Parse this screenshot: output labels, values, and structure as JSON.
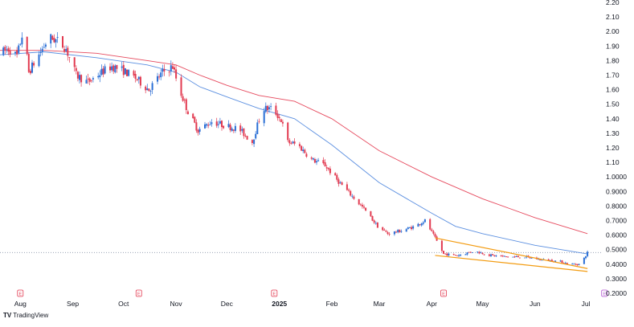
{
  "brand": {
    "logo_glyph": "TV",
    "name": "TradingView"
  },
  "colors": {
    "up": "#2a6fd6",
    "down": "#e23a50",
    "ma_fast": "#5b8fe0",
    "ma_slow": "#e64a5e",
    "channel": "#f39c12",
    "price_line": "#9aa3b5",
    "axis_text": "#131722",
    "event_red": "#e23a50",
    "event_purple": "#b04fd0"
  },
  "chart_data": {
    "type": "candlestick",
    "y_axis": {
      "position": "right",
      "ylim": [
        0.2,
        2.2
      ],
      "ticks": [
        "2.20",
        "2.10",
        "2.00",
        "1.90",
        "1.80",
        "1.70",
        "1.60",
        "1.50",
        "1.40",
        "1.30",
        "1.20",
        "1.10",
        "1.0000",
        "0.9000",
        "0.8000",
        "0.7000",
        "0.6000",
        "0.5000",
        "0.4000",
        "0.3000",
        "0.2000"
      ]
    },
    "x_axis": {
      "labels": [
        "Aug",
        "Sep",
        "Oct",
        "Nov",
        "Dec",
        "2025",
        "Feb",
        "Mar",
        "Apr",
        "May",
        "Jun",
        "Jul"
      ],
      "label_dates": [
        "2024-08-01",
        "2024-09-01",
        "2024-10-01",
        "2024-11-01",
        "2024-12-01",
        "2025-01-01",
        "2025-02-01",
        "2025-03-01",
        "2025-04-01",
        "2025-05-01",
        "2025-06-01",
        "2025-07-01"
      ],
      "range": [
        "2024-07-20",
        "2025-07-10"
      ]
    },
    "last_price": 0.48,
    "price_path": [
      [
        "2024-07-20",
        1.85
      ],
      [
        "2024-07-25",
        1.88
      ],
      [
        "2024-07-30",
        1.83
      ],
      [
        "2024-08-03",
        2.02
      ],
      [
        "2024-08-06",
        1.72
      ],
      [
        "2024-08-12",
        1.84
      ],
      [
        "2024-08-18",
        1.96
      ],
      [
        "2024-08-24",
        1.93
      ],
      [
        "2024-08-28",
        1.88
      ],
      [
        "2024-09-03",
        1.7
      ],
      [
        "2024-09-10",
        1.65
      ],
      [
        "2024-09-18",
        1.72
      ],
      [
        "2024-09-24",
        1.76
      ],
      [
        "2024-10-01",
        1.73
      ],
      [
        "2024-10-08",
        1.68
      ],
      [
        "2024-10-16",
        1.6
      ],
      [
        "2024-10-24",
        1.72
      ],
      [
        "2024-10-30",
        1.76
      ],
      [
        "2024-11-03",
        1.6
      ],
      [
        "2024-11-08",
        1.45
      ],
      [
        "2024-11-14",
        1.32
      ],
      [
        "2024-11-22",
        1.38
      ],
      [
        "2024-12-01",
        1.35
      ],
      [
        "2024-12-08",
        1.33
      ],
      [
        "2024-12-16",
        1.24
      ],
      [
        "2024-12-22",
        1.47
      ],
      [
        "2024-12-28",
        1.47
      ],
      [
        "2025-01-02",
        1.39
      ],
      [
        "2025-01-06",
        1.24
      ],
      [
        "2025-01-12",
        1.22
      ],
      [
        "2025-01-20",
        1.12
      ],
      [
        "2025-01-28",
        1.08
      ],
      [
        "2025-02-04",
        0.98
      ],
      [
        "2025-02-12",
        0.88
      ],
      [
        "2025-02-20",
        0.78
      ],
      [
        "2025-02-28",
        0.66
      ],
      [
        "2025-03-06",
        0.61
      ],
      [
        "2025-03-14",
        0.63
      ],
      [
        "2025-03-22",
        0.66
      ],
      [
        "2025-03-28",
        0.7
      ],
      [
        "2025-04-03",
        0.58
      ],
      [
        "2025-04-08",
        0.47
      ],
      [
        "2025-04-16",
        0.46
      ],
      [
        "2025-04-26",
        0.49
      ],
      [
        "2025-05-06",
        0.46
      ],
      [
        "2025-05-16",
        0.45
      ],
      [
        "2025-05-26",
        0.45
      ],
      [
        "2025-06-05",
        0.43
      ],
      [
        "2025-06-15",
        0.42
      ],
      [
        "2025-06-22",
        0.4
      ],
      [
        "2025-06-28",
        0.4
      ],
      [
        "2025-07-02",
        0.48
      ]
    ],
    "series": [
      {
        "type": "line",
        "role": "moving-average-fast",
        "points": [
          [
            "2024-07-20",
            1.84
          ],
          [
            "2024-08-15",
            1.86
          ],
          [
            "2024-09-15",
            1.82
          ],
          [
            "2024-10-15",
            1.77
          ],
          [
            "2024-11-01",
            1.72
          ],
          [
            "2024-11-15",
            1.62
          ],
          [
            "2024-12-01",
            1.55
          ],
          [
            "2024-12-20",
            1.47
          ],
          [
            "2025-01-10",
            1.4
          ],
          [
            "2025-02-01",
            1.22
          ],
          [
            "2025-03-01",
            0.96
          ],
          [
            "2025-04-01",
            0.75
          ],
          [
            "2025-04-15",
            0.66
          ],
          [
            "2025-05-01",
            0.61
          ],
          [
            "2025-06-01",
            0.53
          ],
          [
            "2025-07-02",
            0.47
          ]
        ]
      },
      {
        "type": "line",
        "role": "moving-average-slow",
        "points": [
          [
            "2024-07-20",
            1.87
          ],
          [
            "2024-08-15",
            1.87
          ],
          [
            "2024-09-15",
            1.85
          ],
          [
            "2024-10-15",
            1.8
          ],
          [
            "2024-11-01",
            1.77
          ],
          [
            "2024-11-15",
            1.7
          ],
          [
            "2024-12-01",
            1.63
          ],
          [
            "2024-12-20",
            1.56
          ],
          [
            "2025-01-10",
            1.52
          ],
          [
            "2025-02-01",
            1.4
          ],
          [
            "2025-03-01",
            1.18
          ],
          [
            "2025-04-01",
            1.0
          ],
          [
            "2025-05-01",
            0.85
          ],
          [
            "2025-06-01",
            0.72
          ],
          [
            "2025-07-02",
            0.61
          ]
        ]
      }
    ],
    "channel": {
      "upper": [
        [
          "2025-04-03",
          0.58
        ],
        [
          "2025-07-02",
          0.37
        ]
      ],
      "lower": [
        [
          "2025-04-03",
          0.46
        ],
        [
          "2025-07-02",
          0.35
        ]
      ]
    },
    "event_markers": [
      {
        "label": "E",
        "date": "2024-08-01",
        "kind": "past"
      },
      {
        "label": "E",
        "date": "2024-10-10",
        "kind": "past"
      },
      {
        "label": "E",
        "date": "2024-12-29",
        "kind": "past"
      },
      {
        "label": "E",
        "date": "2025-04-08",
        "kind": "past"
      },
      {
        "label": "E",
        "date": "2025-07-12",
        "kind": "upcoming"
      }
    ]
  }
}
